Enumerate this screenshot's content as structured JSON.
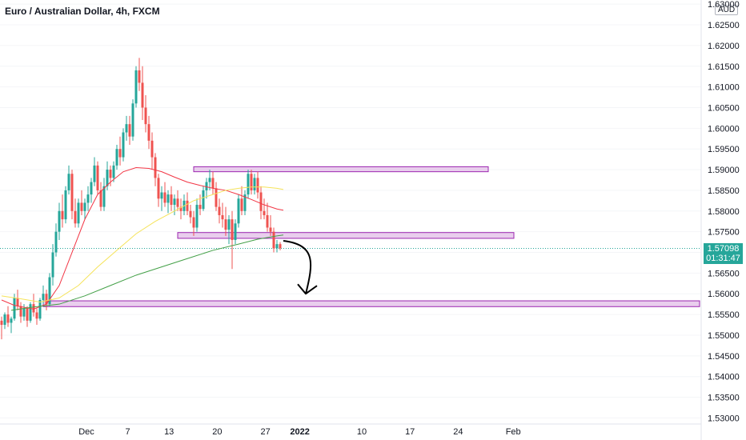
{
  "title": "Euro / Australian Dollar, 4h, FXCM",
  "currency": "AUD",
  "last_price": "1.57098",
  "countdown": "01:31:47",
  "colors": {
    "up": "#26a69a",
    "down": "#ef5350",
    "ma_red": "#f23645",
    "ma_yellow": "#f5e35a",
    "ma_green": "#43a047",
    "zone_fill": "#e1bee7",
    "zone_stroke": "#9c27b0",
    "arrow": "#000000"
  },
  "chart_data": {
    "type": "candlestick",
    "symbol": "Euro / Australian Dollar, 4h, FXCM",
    "ylim": [
      1.53,
      1.631
    ],
    "yticks": [
      "1.53000",
      "1.53500",
      "1.54000",
      "1.54500",
      "1.55000",
      "1.55500",
      "1.56000",
      "1.56500",
      "1.57000",
      "1.57500",
      "1.58000",
      "1.58500",
      "1.59000",
      "1.59500",
      "1.60000",
      "1.60500",
      "1.61000",
      "1.61500",
      "1.62000",
      "1.62500",
      "1.63000"
    ],
    "xticks": [
      {
        "label": "Dec",
        "day": 0
      },
      {
        "label": "7",
        "day": 6
      },
      {
        "label": "13",
        "day": 12
      },
      {
        "label": "20",
        "day": 19
      },
      {
        "label": "27",
        "day": 26
      },
      {
        "label": "2022",
        "day": 31,
        "bold": true
      },
      {
        "label": "10",
        "day": 40
      },
      {
        "label": "17",
        "day": 47
      },
      {
        "label": "24",
        "day": 54
      },
      {
        "label": "Feb",
        "day": 62
      }
    ],
    "candles": [
      [
        1.5535,
        1.5545,
        1.549,
        1.5525
      ],
      [
        1.5525,
        1.5555,
        1.5515,
        1.555
      ],
      [
        1.555,
        1.557,
        1.552,
        1.553
      ],
      [
        1.553,
        1.5545,
        1.5505,
        1.554
      ],
      [
        1.554,
        1.56,
        1.5535,
        1.559
      ],
      [
        1.559,
        1.561,
        1.556,
        1.557
      ],
      [
        1.557,
        1.558,
        1.553,
        1.5545
      ],
      [
        1.5545,
        1.5575,
        1.5535,
        1.5565
      ],
      [
        1.5565,
        1.557,
        1.552,
        1.5535
      ],
      [
        1.5535,
        1.558,
        1.553,
        1.5575
      ],
      [
        1.5575,
        1.56,
        1.5545,
        1.5555
      ],
      [
        1.5555,
        1.5565,
        1.5525,
        1.554
      ],
      [
        1.554,
        1.559,
        1.5535,
        1.5585
      ],
      [
        1.5585,
        1.562,
        1.5575,
        1.56
      ],
      [
        1.56,
        1.561,
        1.556,
        1.5575
      ],
      [
        1.5575,
        1.565,
        1.557,
        1.564
      ],
      [
        1.564,
        1.572,
        1.562,
        1.57
      ],
      [
        1.57,
        1.577,
        1.569,
        1.575
      ],
      [
        1.575,
        1.582,
        1.573,
        1.58
      ],
      [
        1.58,
        1.584,
        1.576,
        1.578
      ],
      [
        1.578,
        1.586,
        1.577,
        1.585
      ],
      [
        1.585,
        1.591,
        1.584,
        1.589
      ],
      [
        1.589,
        1.59,
        1.578,
        1.58
      ],
      [
        1.58,
        1.583,
        1.576,
        1.577
      ],
      [
        1.577,
        1.583,
        1.576,
        1.582
      ],
      [
        1.582,
        1.585,
        1.579,
        1.58
      ],
      [
        1.58,
        1.583,
        1.578,
        1.582
      ],
      [
        1.582,
        1.586,
        1.58,
        1.584
      ],
      [
        1.584,
        1.588,
        1.582,
        1.587
      ],
      [
        1.587,
        1.593,
        1.586,
        1.591
      ],
      [
        1.591,
        1.592,
        1.584,
        1.585
      ],
      [
        1.585,
        1.587,
        1.58,
        1.581
      ],
      [
        1.581,
        1.588,
        1.58,
        1.586
      ],
      [
        1.586,
        1.592,
        1.585,
        1.59
      ],
      [
        1.59,
        1.591,
        1.586,
        1.588
      ],
      [
        1.588,
        1.592,
        1.587,
        1.591
      ],
      [
        1.591,
        1.596,
        1.59,
        1.595
      ],
      [
        1.595,
        1.598,
        1.591,
        1.593
      ],
      [
        1.593,
        1.6,
        1.592,
        1.599
      ],
      [
        1.599,
        1.603,
        1.597,
        1.601
      ],
      [
        1.601,
        1.603,
        1.596,
        1.598
      ],
      [
        1.598,
        1.607,
        1.597,
        1.606
      ],
      [
        1.606,
        1.615,
        1.605,
        1.614
      ],
      [
        1.614,
        1.617,
        1.609,
        1.611
      ],
      [
        1.611,
        1.615,
        1.602,
        1.605
      ],
      [
        1.605,
        1.608,
        1.599,
        1.601
      ],
      [
        1.601,
        1.603,
        1.595,
        1.597
      ],
      [
        1.597,
        1.599,
        1.59,
        1.593
      ],
      [
        1.593,
        1.594,
        1.586,
        1.588
      ],
      [
        1.588,
        1.589,
        1.581,
        1.583
      ],
      [
        1.583,
        1.586,
        1.58,
        1.5845
      ],
      [
        1.5845,
        1.587,
        1.581,
        1.582
      ],
      [
        1.582,
        1.585,
        1.5795,
        1.584
      ],
      [
        1.584,
        1.586,
        1.58,
        1.5815
      ],
      [
        1.5815,
        1.584,
        1.579,
        1.583
      ],
      [
        1.583,
        1.585,
        1.58,
        1.581
      ],
      [
        1.581,
        1.583,
        1.578,
        1.58
      ],
      [
        1.58,
        1.584,
        1.579,
        1.5825
      ],
      [
        1.5825,
        1.5845,
        1.579,
        1.58
      ],
      [
        1.58,
        1.5815,
        1.577,
        1.5785
      ],
      [
        1.5785,
        1.58,
        1.574,
        1.576
      ],
      [
        1.576,
        1.583,
        1.575,
        1.5815
      ],
      [
        1.5815,
        1.584,
        1.579,
        1.5805
      ],
      [
        1.5805,
        1.586,
        1.58,
        1.585
      ],
      [
        1.585,
        1.588,
        1.583,
        1.587
      ],
      [
        1.587,
        1.59,
        1.585,
        1.588
      ],
      [
        1.588,
        1.5895,
        1.584,
        1.5855
      ],
      [
        1.5855,
        1.587,
        1.58,
        1.581
      ],
      [
        1.581,
        1.583,
        1.577,
        1.579
      ],
      [
        1.579,
        1.582,
        1.576,
        1.578
      ],
      [
        1.578,
        1.581,
        1.574,
        1.5755
      ],
      [
        1.5755,
        1.579,
        1.572,
        1.578
      ],
      [
        1.578,
        1.58,
        1.566,
        1.573
      ],
      [
        1.573,
        1.578,
        1.572,
        1.577
      ],
      [
        1.577,
        1.584,
        1.576,
        1.583
      ],
      [
        1.583,
        1.586,
        1.579,
        1.58
      ],
      [
        1.58,
        1.585,
        1.579,
        1.584
      ],
      [
        1.584,
        1.59,
        1.583,
        1.589
      ],
      [
        1.589,
        1.59,
        1.584,
        1.585
      ],
      [
        1.585,
        1.589,
        1.584,
        1.588
      ],
      [
        1.588,
        1.5895,
        1.583,
        1.5845
      ],
      [
        1.5845,
        1.586,
        1.578,
        1.58
      ],
      [
        1.58,
        1.583,
        1.578,
        1.579
      ],
      [
        1.579,
        1.582,
        1.575,
        1.576
      ],
      [
        1.576,
        1.579,
        1.574,
        1.575
      ],
      [
        1.575,
        1.576,
        1.57,
        1.571
      ],
      [
        1.571,
        1.573,
        1.57,
        1.572
      ],
      [
        1.572,
        1.5725,
        1.5705,
        1.571
      ]
    ],
    "moving_averages": [
      {
        "color": "#f23645",
        "points": [
          [
            0,
            1.5585
          ],
          [
            4,
            1.5572
          ],
          [
            10,
            1.5563
          ],
          [
            14,
            1.5575
          ],
          [
            18,
            1.562
          ],
          [
            22,
            1.57
          ],
          [
            26,
            1.578
          ],
          [
            30,
            1.584
          ],
          [
            34,
            1.587
          ],
          [
            38,
            1.5895
          ],
          [
            42,
            1.5905
          ],
          [
            46,
            1.5903
          ],
          [
            50,
            1.5895
          ],
          [
            54,
            1.5882
          ],
          [
            58,
            1.587
          ],
          [
            62,
            1.5862
          ],
          [
            66,
            1.5855
          ],
          [
            70,
            1.585
          ],
          [
            74,
            1.584
          ],
          [
            78,
            1.5828
          ],
          [
            82,
            1.5815
          ],
          [
            86,
            1.5805
          ],
          [
            88,
            1.5802
          ]
        ]
      },
      {
        "color": "#f5e35a",
        "points": [
          [
            0,
            1.5595
          ],
          [
            6,
            1.5588
          ],
          [
            12,
            1.558
          ],
          [
            18,
            1.559
          ],
          [
            24,
            1.562
          ],
          [
            30,
            1.5665
          ],
          [
            36,
            1.5705
          ],
          [
            42,
            1.5745
          ],
          [
            48,
            1.5775
          ],
          [
            54,
            1.58
          ],
          [
            60,
            1.5825
          ],
          [
            66,
            1.584
          ],
          [
            70,
            1.585
          ],
          [
            74,
            1.5855
          ],
          [
            78,
            1.5858
          ],
          [
            82,
            1.5858
          ],
          [
            86,
            1.5855
          ],
          [
            88,
            1.5852
          ]
        ]
      },
      {
        "color": "#43a047",
        "points": [
          [
            3,
            1.556
          ],
          [
            10,
            1.5568
          ],
          [
            18,
            1.5575
          ],
          [
            26,
            1.5595
          ],
          [
            34,
            1.562
          ],
          [
            42,
            1.5645
          ],
          [
            50,
            1.5665
          ],
          [
            58,
            1.5685
          ],
          [
            66,
            1.5705
          ],
          [
            74,
            1.572
          ],
          [
            80,
            1.5732
          ],
          [
            86,
            1.574
          ],
          [
            88,
            1.5742
          ]
        ]
      }
    ],
    "zones": [
      {
        "from_bar": 60,
        "to_bar": 152,
        "top": 1.5907,
        "bottom": 1.5895
      },
      {
        "from_bar": 55,
        "to_bar": 160,
        "top": 1.5748,
        "bottom": 1.5734
      },
      {
        "from_bar": 13,
        "to_bar": 218,
        "top": 1.5583,
        "bottom": 1.5569
      }
    ],
    "arrow": {
      "from_bar": 88,
      "from": 1.5728,
      "to_bar": 95,
      "to": 1.56
    },
    "last_price": 1.57098
  }
}
